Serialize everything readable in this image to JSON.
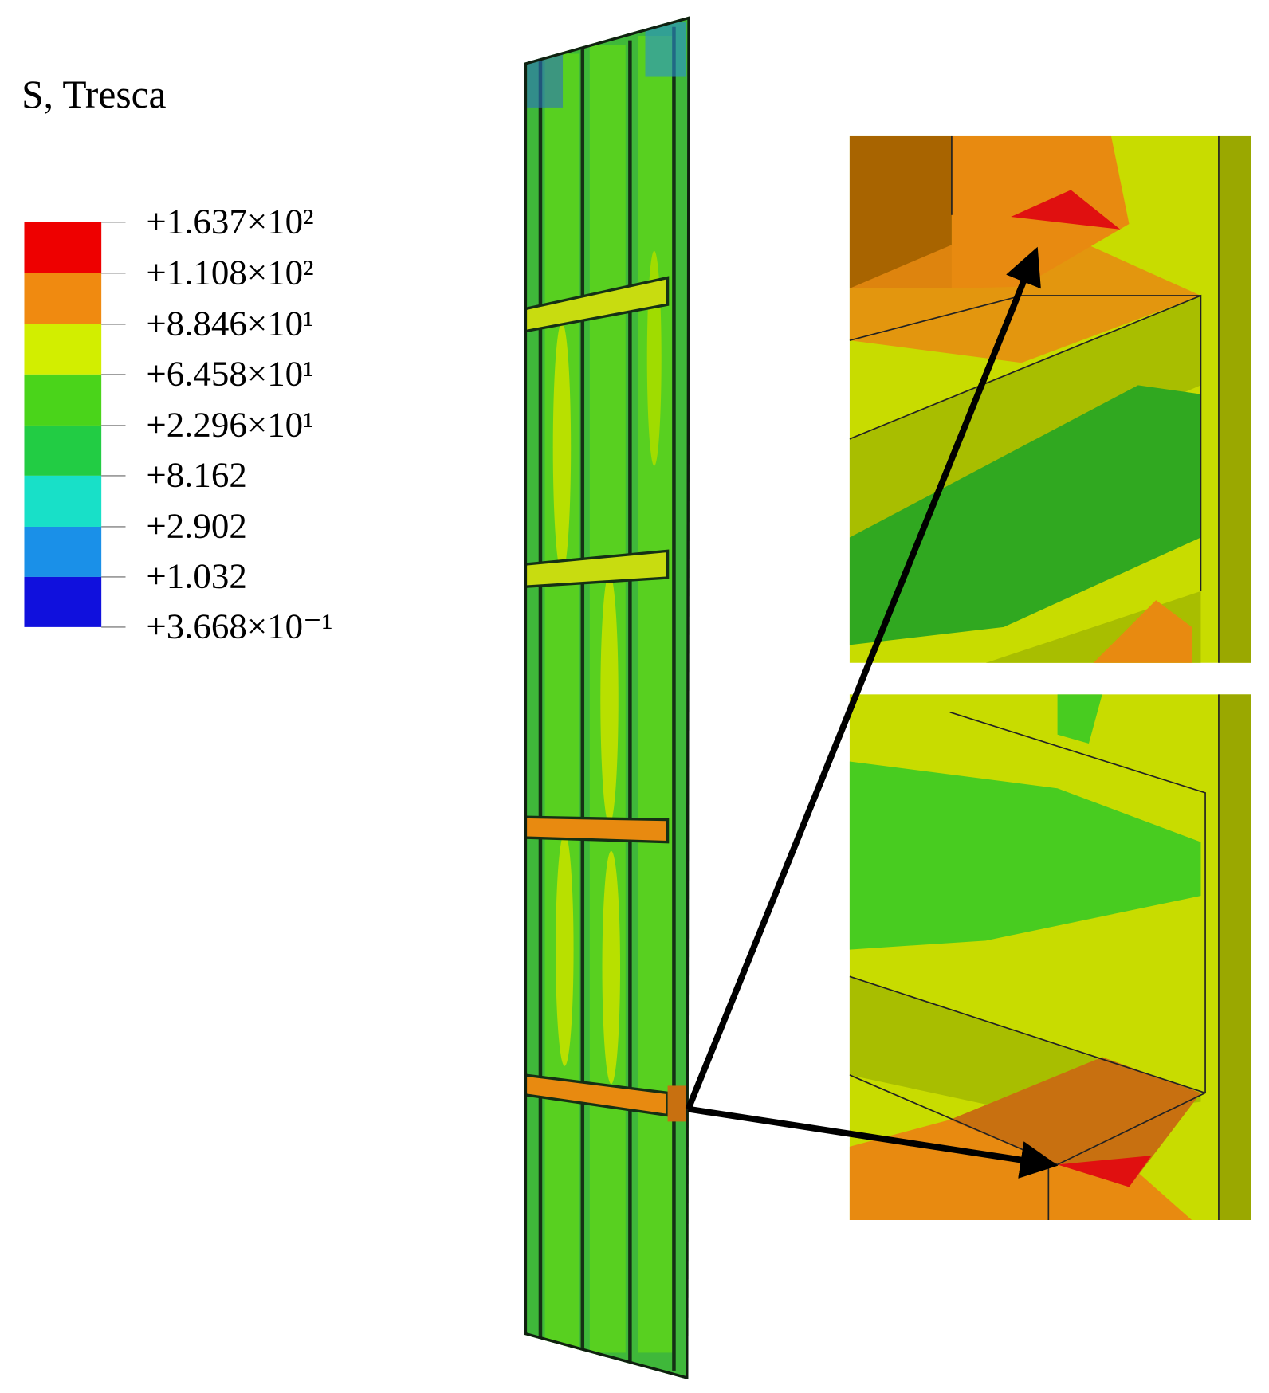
{
  "legend": {
    "title": "S, Tresca",
    "labels": [
      "+1.637×10²",
      "+1.108×10²",
      "+8.846×10¹",
      "+6.458×10¹",
      "+2.296×10¹",
      "+8.162",
      "+2.902",
      "+1.032",
      "+3.668×10⁻¹"
    ]
  }
}
